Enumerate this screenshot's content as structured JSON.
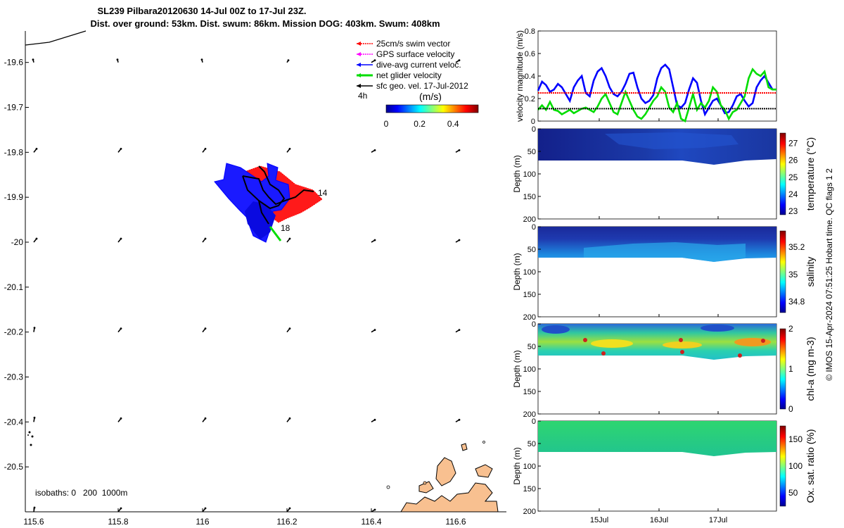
{
  "header": {
    "title_line1": "SL239 Pilbara20120630 14-Jul 00Z to 17-Jul 23Z.",
    "title_line2": "Dist. over ground: 53km. Dist. swum: 86km. Mission DOG: 403km. Swum: 408km"
  },
  "colors": {
    "swim_vector": "#ff0000",
    "gps_velocity": "#ff00ff",
    "current": "#0000ff",
    "net_glider": "#00dd00",
    "geo_vector": "#000000",
    "land": "#f8c090"
  },
  "chart_data": [
    {
      "type": "map",
      "x_ticks": [
        "115.6",
        "115.8",
        "116",
        "116.2",
        "116.4",
        "116.6"
      ],
      "y_ticks": [
        "-19.6",
        "-19.7",
        "-19.8",
        "-19.9",
        "-20",
        "-20.1",
        "-20.2",
        "-20.3",
        "-20.4",
        "-20.5"
      ],
      "xlim": [
        115.58,
        116.72
      ],
      "ylim": [
        -20.6,
        -19.53
      ],
      "legend": {
        "items": [
          {
            "label": "25cm/s swim vector",
            "color": "#ff0000"
          },
          {
            "label": "GPS surface velocity",
            "color": "#ff00ff"
          },
          {
            "label": "dive-avg current veloc.",
            "color": "#0000ff"
          },
          {
            "label": "net glider velocity",
            "color": "#00dd00"
          },
          {
            "label": "sfc geo. vel. 17-Jul-2012",
            "color": "#000000"
          }
        ],
        "interval": "4h",
        "units": "(m/s)",
        "colorbar_ticks": [
          "0",
          "0.2",
          "0.4"
        ],
        "placement": "top-right"
      },
      "track_labels": [
        {
          "text": "14",
          "lon": 116.27,
          "lat": -19.893
        },
        {
          "text": "18",
          "lon": 116.18,
          "lat": -19.962
        }
      ],
      "isobaths_label": "isobaths: 0   200  1000m"
    },
    {
      "type": "line",
      "ylabel": "velocity magnitude (m/s)",
      "ylim": [
        0,
        0.8
      ],
      "y_ticks": [
        "0",
        "0.2",
        "0.4",
        "0.6",
        "0.8"
      ],
      "series": [
        {
          "color": "#0000ff",
          "values": [
            0.27,
            0.35,
            0.32,
            0.26,
            0.28,
            0.33,
            0.3,
            0.24,
            0.18,
            0.3,
            0.36,
            0.4,
            0.25,
            0.22,
            0.36,
            0.44,
            0.47,
            0.4,
            0.3,
            0.24,
            0.22,
            0.26,
            0.33,
            0.42,
            0.43,
            0.3,
            0.2,
            0.16,
            0.18,
            0.23,
            0.38,
            0.47,
            0.5,
            0.46,
            0.3,
            0.14,
            0.12,
            0.16,
            0.28,
            0.38,
            0.34,
            0.18,
            0.06,
            0.12,
            0.18,
            0.2,
            0.14,
            0.07,
            0.08,
            0.14,
            0.22,
            0.24,
            0.18,
            0.13,
            0.16,
            0.3,
            0.36,
            0.4,
            0.34,
            0.28,
            0.28
          ]
        },
        {
          "color": "#00dd00",
          "values": [
            0.1,
            0.14,
            0.1,
            0.17,
            0.1,
            0.09,
            0.06,
            0.08,
            0.1,
            0.07,
            0.09,
            0.11,
            0.12,
            0.1,
            0.08,
            0.13,
            0.2,
            0.24,
            0.16,
            0.08,
            0.06,
            0.16,
            0.26,
            0.18,
            0.1,
            0.04,
            0.02,
            0.06,
            0.12,
            0.18,
            0.22,
            0.3,
            0.26,
            0.12,
            0.08,
            0.16,
            0.02,
            0.0,
            0.12,
            0.24,
            0.1,
            0.16,
            0.12,
            0.18,
            0.3,
            0.26,
            0.14,
            0.1,
            0.02,
            0.08,
            0.1,
            0.16,
            0.22,
            0.38,
            0.46,
            0.42,
            0.4,
            0.44,
            0.3,
            0.28,
            0.28
          ]
        },
        {
          "color": "#ff0000",
          "values": [
            0.25,
            0.25
          ]
        },
        {
          "color": "#000000",
          "values": [
            0.11,
            0.11
          ]
        }
      ]
    },
    {
      "type": "heatmap",
      "ylabel": "Depth (m)",
      "ylim": [
        0,
        200
      ],
      "y_ticks": [
        "0",
        "50",
        "100",
        "150",
        "200"
      ],
      "colorbar_label": "temperature (°C)",
      "colorbar_ticks": [
        "27",
        "26",
        "25",
        "24",
        "23"
      ]
    },
    {
      "type": "heatmap",
      "ylabel": "Depth (m)",
      "ylim": [
        0,
        200
      ],
      "y_ticks": [
        "0",
        "50",
        "100",
        "150",
        "200"
      ],
      "colorbar_label": "salinity",
      "colorbar_ticks": [
        "35.2",
        "35",
        "34.8"
      ]
    },
    {
      "type": "heatmap",
      "ylabel": "Depth (m)",
      "ylim": [
        0,
        200
      ],
      "y_ticks": [
        "0",
        "50",
        "100",
        "150",
        "200"
      ],
      "colorbar_label": "chl-a (mg m-3)",
      "colorbar_ticks": [
        "2",
        "1",
        "0"
      ]
    },
    {
      "type": "heatmap",
      "ylabel": "Depth (m)",
      "ylim": [
        0,
        200
      ],
      "y_ticks": [
        "0",
        "50",
        "100",
        "150",
        "200"
      ],
      "x_ticks": [
        "15Jul",
        "16Jul",
        "17Jul"
      ],
      "colorbar_label": "Ox. sat. ratio (%)",
      "colorbar_ticks": [
        "150",
        "100",
        "50"
      ]
    }
  ],
  "side_note": "© IMOS 15-Apr-2024 07:51:25 Hobart time. QC flags 1 2"
}
